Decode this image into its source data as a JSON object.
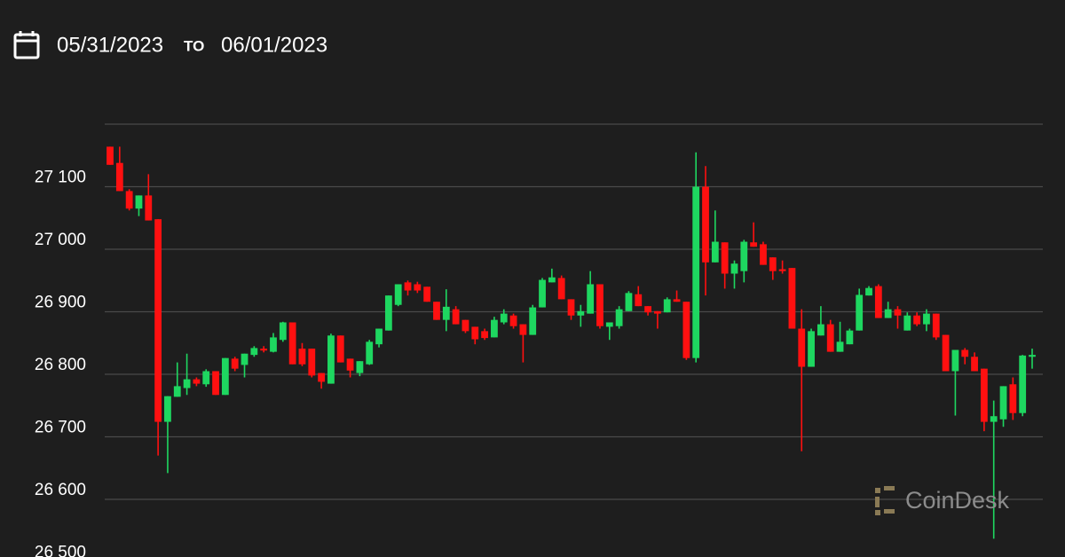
{
  "header": {
    "from": "05/31/2023",
    "to_label": "TO",
    "to": "06/01/2023"
  },
  "watermark": "CoinDesk",
  "chart_data": {
    "type": "candlestick",
    "up_color": "#1ed760",
    "down_color": "#ff1010",
    "grid": true,
    "ylim": [
      26500,
      27200
    ],
    "yticks": [
      {
        "value": 26500,
        "label": "26 500"
      },
      {
        "value": 26600,
        "label": "26 600"
      },
      {
        "value": 26700,
        "label": "26 700"
      },
      {
        "value": 26800,
        "label": "26 800"
      },
      {
        "value": 26900,
        "label": "26 900"
      },
      {
        "value": 27000,
        "label": "27 000"
      },
      {
        "value": 27100,
        "label": "27 100"
      }
    ],
    "open": [
      27164,
      27138,
      27093,
      27065,
      27086,
      27048,
      26724,
      26764,
      26778,
      26792,
      26784,
      26805,
      26767,
      26825,
      26815,
      26831,
      26841,
      26836,
      26855,
      26883,
      26841,
      26841,
      26802,
      26785,
      26862,
      26825,
      26802,
      26816,
      26848,
      26870,
      26911,
      26947,
      26944,
      26940,
      26916,
      26887,
      26904,
      26887,
      26876,
      26869,
      26859,
      26883,
      26894,
      26880,
      26863,
      26907,
      26947,
      26954,
      26920,
      26894,
      26897,
      26944,
      26876,
      26877,
      26901,
      26928,
      26909,
      26901,
      26899,
      26920,
      26916,
      26826,
      27100,
      26979,
      27011,
      26961,
      26965,
      27011,
      27008,
      26987,
      26968,
      26970,
      26873,
      26812,
      26862,
      26880,
      26836,
      26848,
      26870,
      26926,
      26941,
      26890,
      26904,
      26870,
      26894,
      26880,
      26897,
      26863,
      26805,
      26839,
      26828,
      26809,
      26724,
      26728,
      26784,
      26738,
      26828
    ],
    "high": [
      27164,
      27164,
      27096,
      27086,
      27120,
      27048,
      26765,
      26819,
      26833,
      26795,
      26808,
      26805,
      26826,
      26828,
      26833,
      26845,
      26845,
      26866,
      26884,
      26883,
      26850,
      26841,
      26802,
      26865,
      26862,
      26825,
      26821,
      26855,
      26873,
      26926,
      26944,
      26950,
      26948,
      26940,
      26916,
      26936,
      26909,
      26887,
      26876,
      26873,
      26892,
      26904,
      26897,
      26880,
      26911,
      26954,
      26969,
      26958,
      26920,
      26911,
      26965,
      26944,
      26883,
      26909,
      26933,
      26941,
      26909,
      26901,
      26923,
      26934,
      26916,
      27155,
      27133,
      27062,
      27011,
      26982,
      27015,
      27043,
      27012,
      26987,
      26982,
      26970,
      26904,
      26873,
      26909,
      26887,
      26884,
      26873,
      26937,
      26941,
      26944,
      26916,
      26909,
      26899,
      26899,
      26904,
      26897,
      26863,
      26839,
      26842,
      26835,
      26809,
      26758,
      26781,
      26795,
      26831,
      26841
    ],
    "low": [
      27135,
      27093,
      27062,
      27053,
      27046,
      26670,
      26642,
      26764,
      26767,
      26781,
      26780,
      26767,
      26767,
      26805,
      26795,
      26828,
      26835,
      26835,
      26852,
      26816,
      26813,
      26795,
      26777,
      26785,
      26819,
      26795,
      26797,
      26815,
      26843,
      26870,
      26909,
      26926,
      26930,
      26916,
      26887,
      26869,
      26880,
      26866,
      26848,
      26855,
      26859,
      26880,
      26873,
      26819,
      26863,
      26907,
      26947,
      26920,
      26887,
      26876,
      26897,
      26873,
      26855,
      26873,
      26901,
      26909,
      26894,
      26873,
      26899,
      26916,
      26823,
      26819,
      26926,
      26979,
      26937,
      26937,
      26947,
      27004,
      26975,
      26951,
      26961,
      26873,
      26677,
      26812,
      26862,
      26836,
      26836,
      26848,
      26870,
      26926,
      26890,
      26890,
      26873,
      26870,
      26877,
      26869,
      26855,
      26805,
      26734,
      26816,
      26805,
      26709,
      26537,
      26716,
      26727,
      26733,
      26809
    ],
    "close": [
      27135,
      27093,
      27065,
      27086,
      27046,
      26724,
      26765,
      26781,
      26792,
      26785,
      26805,
      26767,
      26826,
      26809,
      26833,
      26842,
      26838,
      26859,
      26883,
      26816,
      26816,
      26798,
      26788,
      26862,
      26819,
      26806,
      26821,
      26852,
      26873,
      26926,
      26944,
      26934,
      26934,
      26916,
      26887,
      26908,
      26880,
      26869,
      26856,
      26858,
      26887,
      26897,
      26877,
      26863,
      26907,
      26951,
      26955,
      26920,
      26894,
      26901,
      26944,
      26877,
      26883,
      26904,
      26930,
      26909,
      26899,
      26897,
      26920,
      26916,
      26826,
      27100,
      26979,
      27012,
      26961,
      26977,
      27012,
      27004,
      26975,
      26965,
      26965,
      26873,
      26812,
      26869,
      26880,
      26836,
      26852,
      26870,
      26927,
      26938,
      26890,
      26904,
      26894,
      26894,
      26880,
      26897,
      26859,
      26805,
      26839,
      26828,
      26805,
      26724,
      26733,
      26781,
      26738,
      26830,
      26831
    ]
  }
}
